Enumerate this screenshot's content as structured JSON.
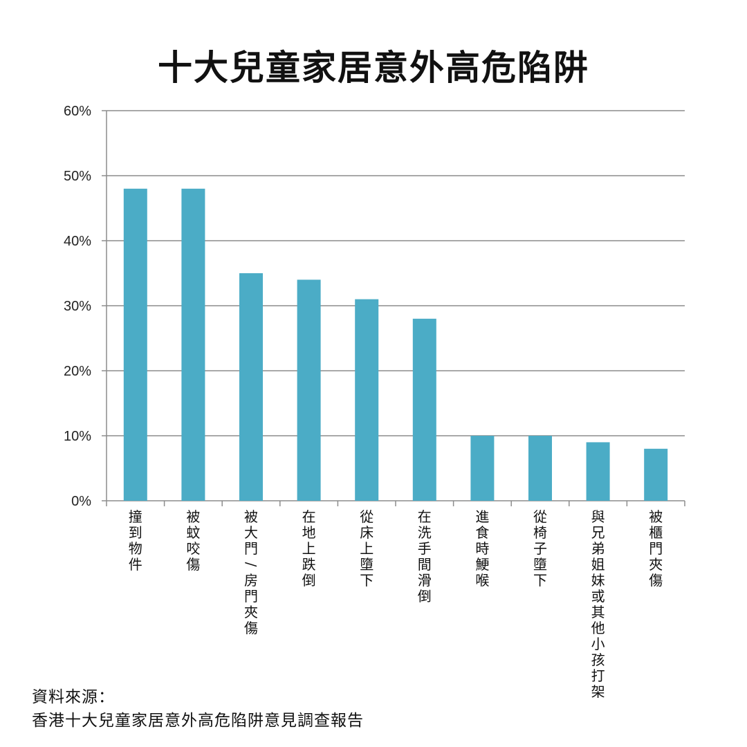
{
  "chart_data": {
    "type": "bar",
    "title": "十大兒童家居意外高危陷阱",
    "categories": [
      "撞到物件",
      "被蚊咬傷",
      "被大門/房門夾傷",
      "在地上跌倒",
      "從床上墮下",
      "在洗手間滑倒",
      "進食時鯁喉",
      "從椅子墮下",
      "與兄弟姐妹或其他小孩打架",
      "被櫃門夾傷"
    ],
    "values": [
      48,
      48,
      35,
      34,
      31,
      28,
      10,
      10,
      9,
      8
    ],
    "ylim": [
      0,
      60
    ],
    "yticks": [
      "0%",
      "10%",
      "20%",
      "30%",
      "40%",
      "50%",
      "60%"
    ],
    "ytick_values": [
      0,
      10,
      20,
      30,
      40,
      50,
      60
    ],
    "bar_color": "#4bacc6",
    "grid": true,
    "legend": "none"
  },
  "source": {
    "label": "資料來源：",
    "text": "香港十大兒童家居意外高危陷阱意見調查報告"
  }
}
